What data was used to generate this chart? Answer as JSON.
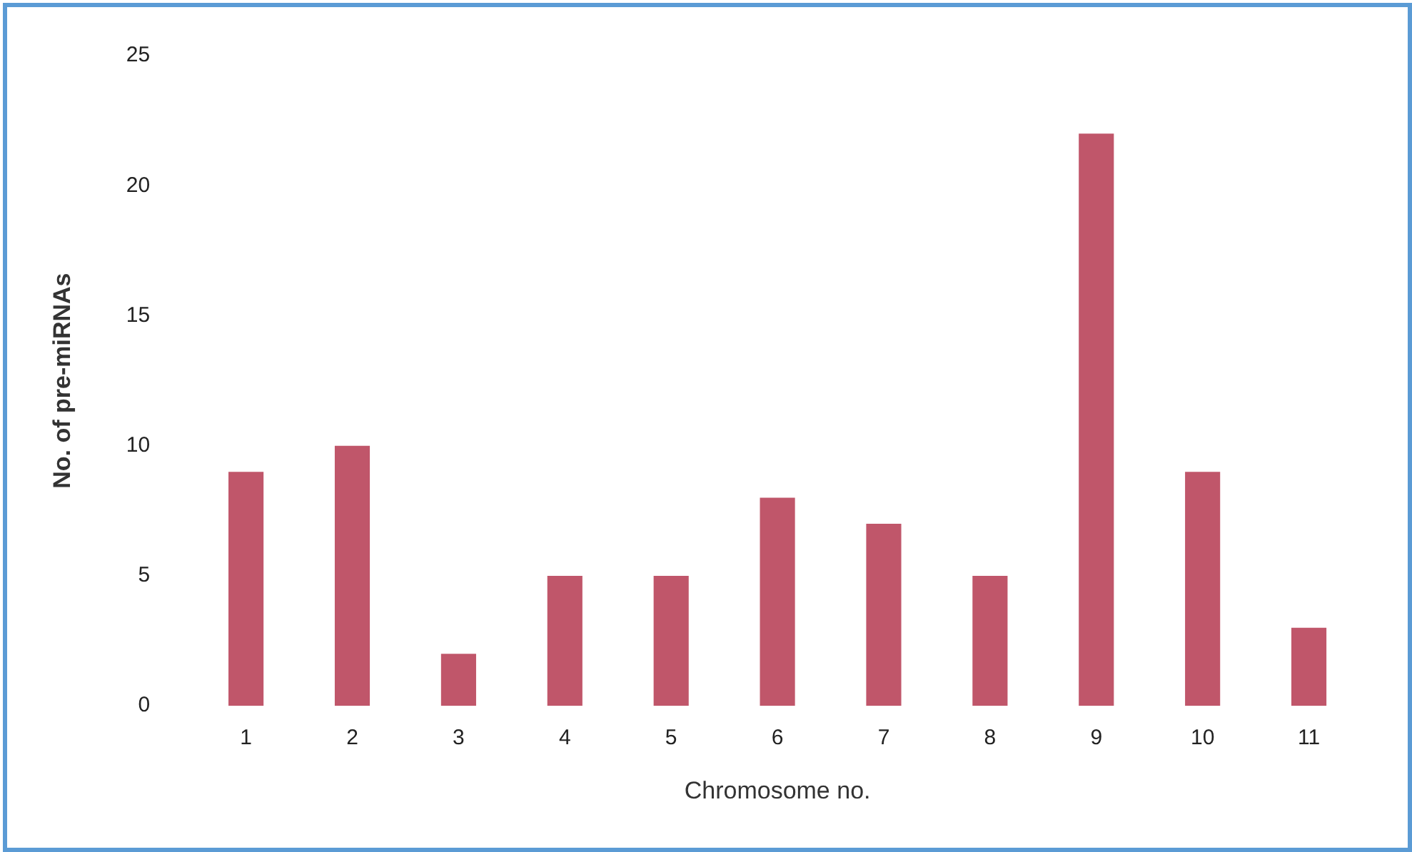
{
  "chart_data": {
    "type": "bar",
    "xlabel": "Chromosome no.",
    "ylabel": "No. of pre-miRNAs",
    "categories": [
      "1",
      "2",
      "3",
      "4",
      "5",
      "6",
      "7",
      "8",
      "9",
      "10",
      "11"
    ],
    "values": [
      9,
      10,
      2,
      5,
      5,
      8,
      7,
      5,
      22,
      9,
      3
    ],
    "color": "#c0566a",
    "ylim": [
      0,
      25
    ],
    "yticks": [
      0,
      5,
      10,
      15,
      20,
      25
    ],
    "grid": false,
    "legend": false
  }
}
